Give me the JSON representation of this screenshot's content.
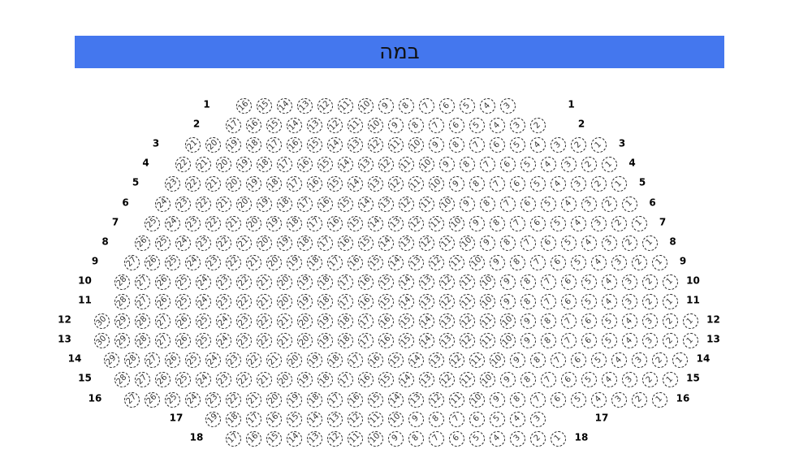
{
  "stage": {
    "label": "במה",
    "color": "#4477ee"
  },
  "rows": [
    {
      "label": "1",
      "max": 16,
      "min": 3
    },
    {
      "label": "2",
      "max": 17,
      "min": 2
    },
    {
      "label": "3",
      "max": 21,
      "min": 1
    },
    {
      "label": "4",
      "max": 22,
      "min": 1
    },
    {
      "label": "5",
      "max": 23,
      "min": 1
    },
    {
      "label": "6",
      "max": 24,
      "min": 1
    },
    {
      "label": "7",
      "max": 25,
      "min": 1
    },
    {
      "label": "8",
      "max": 26,
      "min": 1
    },
    {
      "label": "9",
      "max": 27,
      "min": 1
    },
    {
      "label": "10",
      "max": 28,
      "min": 1
    },
    {
      "label": "11",
      "max": 28,
      "min": 1
    },
    {
      "label": "12",
      "max": 30,
      "min": 1
    },
    {
      "label": "13",
      "max": 30,
      "min": 1
    },
    {
      "label": "14",
      "max": 29,
      "min": 1
    },
    {
      "label": "15",
      "max": 28,
      "min": 1
    },
    {
      "label": "16",
      "max": 27,
      "min": 1
    },
    {
      "label": "17",
      "max": 19,
      "min": 3
    },
    {
      "label": "18",
      "max": 17,
      "min": 1
    }
  ]
}
